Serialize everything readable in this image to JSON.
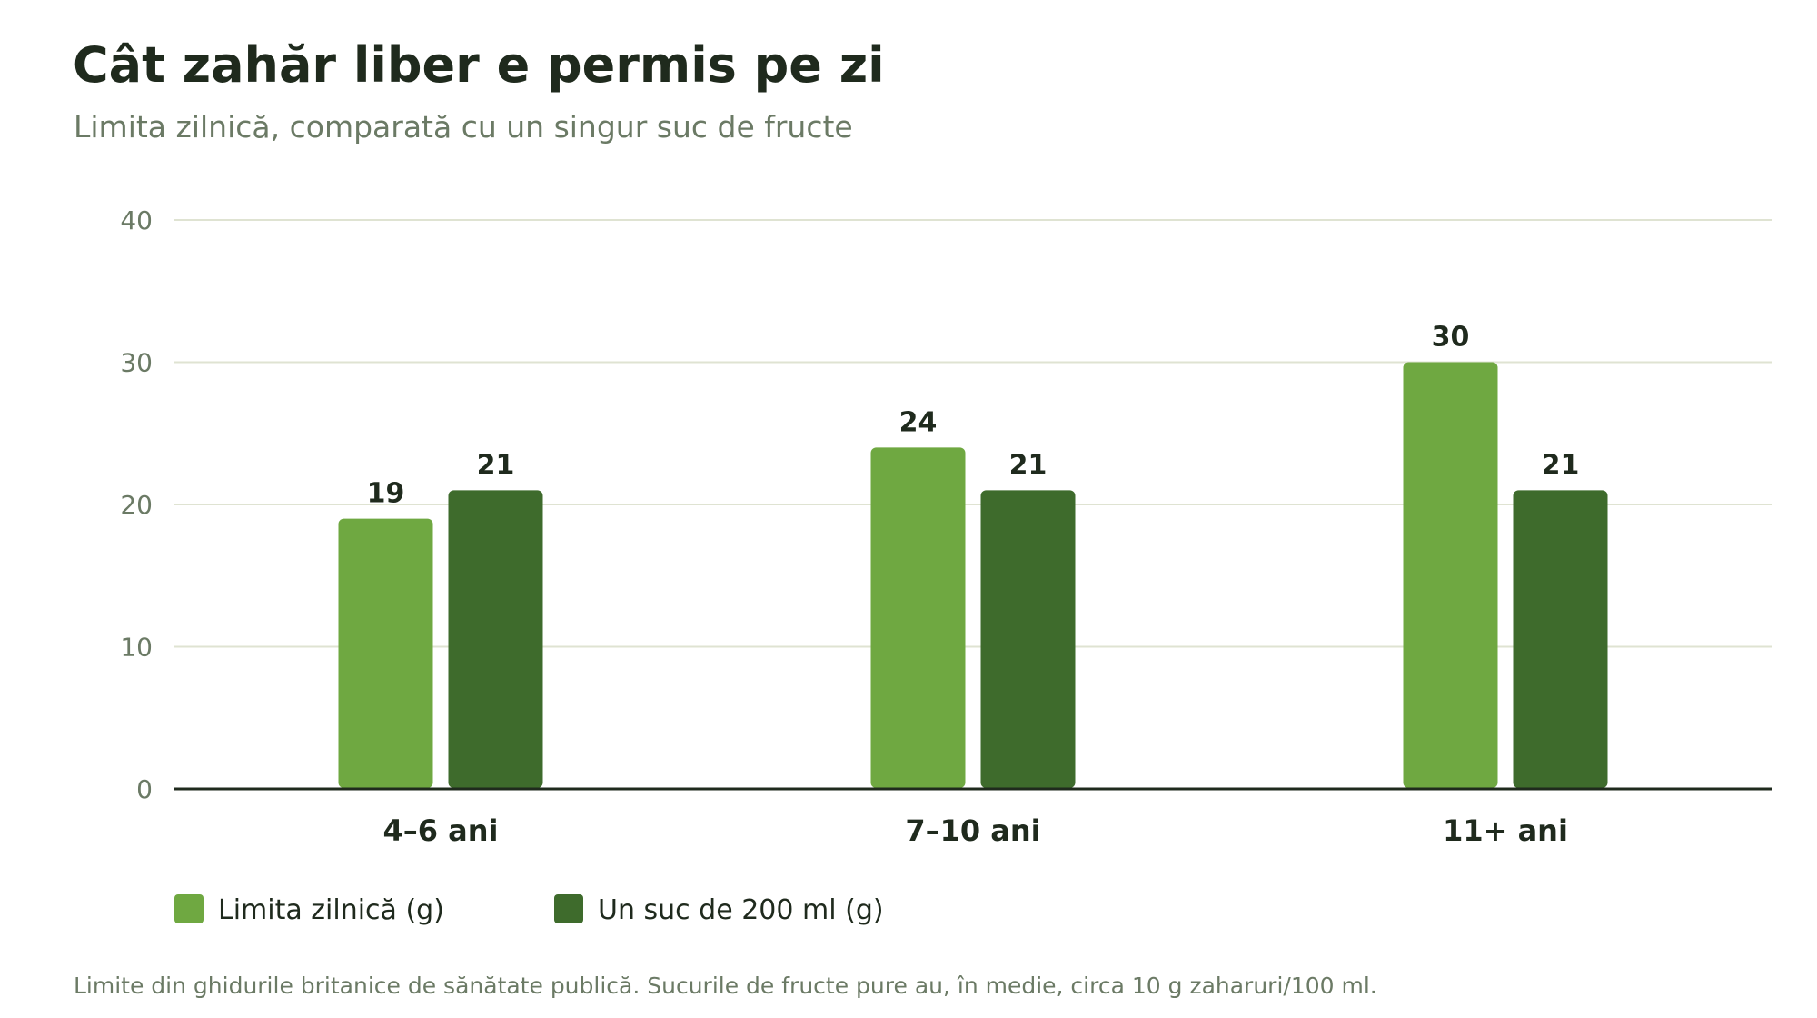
{
  "header": {
    "title": "Cât zahăr liber e permis pe zi",
    "subtitle": "Limita zilnică, comparată cu un singur suc de fructe"
  },
  "chart_data": {
    "type": "bar",
    "categories": [
      "4–6 ani",
      "7–10 ani",
      "11+ ani"
    ],
    "series": [
      {
        "name": "Limita zilnică (g)",
        "values": [
          19,
          24,
          30
        ],
        "color": "#6fa841"
      },
      {
        "name": "Un suc de 200 ml (g)",
        "values": [
          21,
          21,
          21
        ],
        "color": "#3e6b2c"
      }
    ],
    "ylim": [
      0,
      40
    ],
    "yticks": [
      0,
      10,
      20,
      30,
      40
    ],
    "grid": true,
    "legend": "bottom-left",
    "data_labels": true
  },
  "footer": {
    "note": "Limite din ghidurile britanice de sănătate publică. Sucurile de fructe pure au, în medie, circa 10 g zaharuri/100 ml."
  }
}
